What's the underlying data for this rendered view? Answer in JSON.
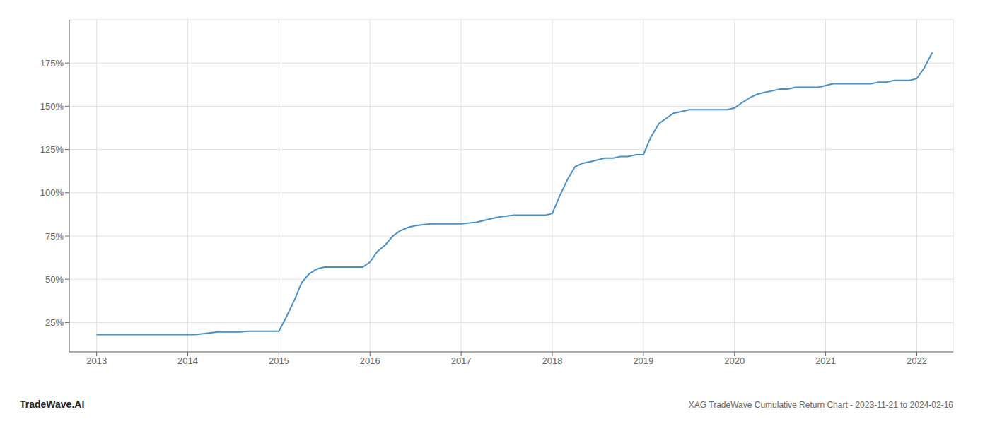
{
  "chart_data": {
    "type": "line",
    "title": "XAG TradeWave Cumulative Return Chart - 2023-11-21 to 2024-02-16",
    "annotations": [
      "TradeWave.AI"
    ],
    "color": "#4a90c4",
    "grid": true,
    "x": [
      2013.0,
      2013.08,
      2013.17,
      2013.25,
      2013.33,
      2013.42,
      2013.5,
      2013.58,
      2013.67,
      2013.75,
      2013.83,
      2013.92,
      2014.0,
      2014.08,
      2014.17,
      2014.25,
      2014.33,
      2014.42,
      2014.5,
      2014.58,
      2014.67,
      2014.75,
      2014.83,
      2014.92,
      2015.0,
      2015.08,
      2015.17,
      2015.25,
      2015.33,
      2015.42,
      2015.5,
      2015.58,
      2015.67,
      2015.75,
      2015.83,
      2015.92,
      2016.0,
      2016.08,
      2016.17,
      2016.25,
      2016.33,
      2016.42,
      2016.5,
      2016.58,
      2016.67,
      2016.75,
      2016.83,
      2016.92,
      2017.0,
      2017.08,
      2017.17,
      2017.25,
      2017.33,
      2017.42,
      2017.5,
      2017.58,
      2017.67,
      2017.75,
      2017.83,
      2017.92,
      2018.0,
      2018.08,
      2018.17,
      2018.25,
      2018.33,
      2018.42,
      2018.5,
      2018.58,
      2018.67,
      2018.75,
      2018.83,
      2018.92,
      2019.0,
      2019.08,
      2019.17,
      2019.25,
      2019.33,
      2019.42,
      2019.5,
      2019.58,
      2019.67,
      2019.75,
      2019.83,
      2019.92,
      2020.0,
      2020.08,
      2020.17,
      2020.25,
      2020.33,
      2020.42,
      2020.5,
      2020.58,
      2020.67,
      2020.75,
      2020.83,
      2020.92,
      2021.0,
      2021.08,
      2021.17,
      2021.25,
      2021.33,
      2021.42,
      2021.5,
      2021.58,
      2021.67,
      2021.75,
      2021.83,
      2021.92,
      2022.0,
      2022.08,
      2022.17
    ],
    "values": [
      18,
      18,
      18,
      18,
      18,
      18,
      18,
      18,
      18,
      18,
      18,
      18,
      18,
      18,
      18.5,
      19,
      19.5,
      19.5,
      19.5,
      19.5,
      20,
      20,
      20,
      20,
      20,
      28,
      38,
      48,
      53,
      56,
      57,
      57,
      57,
      57,
      57,
      57,
      60,
      66,
      70,
      75,
      78,
      80,
      81,
      81.5,
      82,
      82,
      82,
      82,
      82,
      82.5,
      83,
      84,
      85,
      86,
      86.5,
      87,
      87,
      87,
      87,
      87,
      88,
      98,
      108,
      115,
      117,
      118,
      119,
      120,
      120,
      121,
      121,
      122,
      122,
      132,
      140,
      143,
      146,
      147,
      148,
      148,
      148,
      148,
      148,
      148,
      149,
      152,
      155,
      157,
      158,
      159,
      160,
      160,
      161,
      161,
      161,
      161,
      162,
      163,
      163,
      163,
      163,
      163,
      163,
      164,
      164,
      165,
      165,
      165,
      166,
      172,
      181
    ],
    "xlim": [
      2012.7,
      2022.4
    ],
    "xticks": [
      2013,
      2014,
      2015,
      2016,
      2017,
      2018,
      2019,
      2020,
      2021,
      2022
    ],
    "ylim": [
      8,
      200
    ],
    "yticks": [
      {
        "value": 25,
        "label": "25%"
      },
      {
        "value": 50,
        "label": "50%"
      },
      {
        "value": 75,
        "label": "75%"
      },
      {
        "value": 100,
        "label": "100%"
      },
      {
        "value": 125,
        "label": "125%"
      },
      {
        "value": 150,
        "label": "150%"
      },
      {
        "value": 175,
        "label": "175%"
      }
    ]
  }
}
